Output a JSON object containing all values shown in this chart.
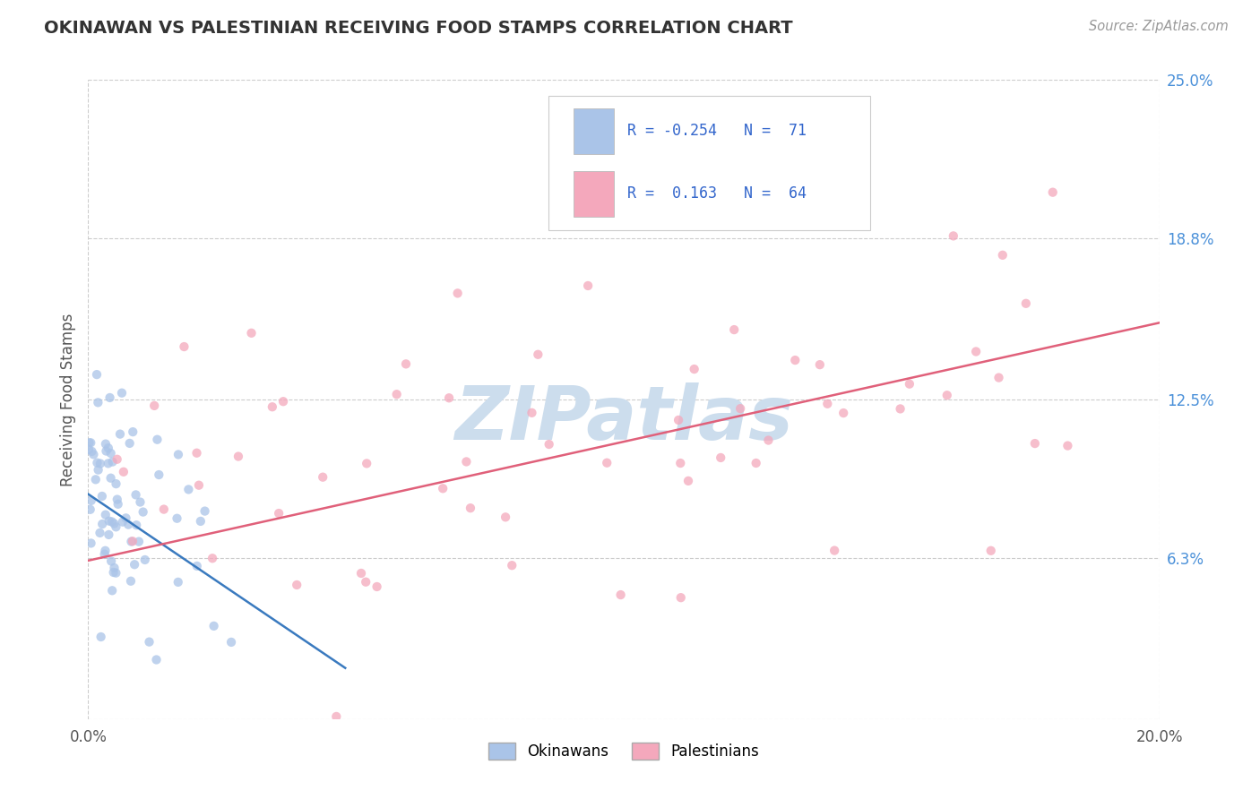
{
  "title": "OKINAWAN VS PALESTINIAN RECEIVING FOOD STAMPS CORRELATION CHART",
  "source": "Source: ZipAtlas.com",
  "ylabel": "Receiving Food Stamps",
  "xlim": [
    0.0,
    0.2
  ],
  "ylim": [
    0.0,
    0.25
  ],
  "ytick_positions": [
    0.0,
    0.063,
    0.125,
    0.188,
    0.25
  ],
  "ytick_labels": [
    "",
    "6.3%",
    "12.5%",
    "18.8%",
    "25.0%"
  ],
  "grid_color": "#cccccc",
  "background_color": "#ffffff",
  "okinawan_color": "#aac4e8",
  "palestinian_color": "#f4a8bc",
  "okinawan_line_color": "#3a7abf",
  "palestinian_line_color": "#e0607a",
  "R_okinawan": -0.254,
  "N_okinawan": 71,
  "R_palestinian": 0.163,
  "N_palestinian": 64,
  "watermark": "ZIPatlas",
  "watermark_color": "#ccdded",
  "ok_trend_x": [
    0.0,
    0.048
  ],
  "ok_trend_y": [
    0.088,
    0.02
  ],
  "pal_trend_x": [
    0.0,
    0.2
  ],
  "pal_trend_y": [
    0.062,
    0.155
  ]
}
